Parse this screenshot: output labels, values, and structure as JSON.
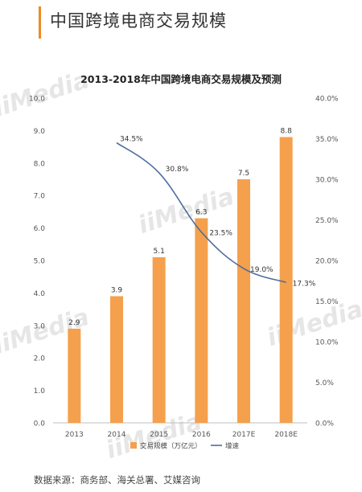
{
  "page_title": "中国跨境电商交易规模",
  "source": "数据来源：商务部、海关总署、艾媒咨询",
  "watermark": "iiMedia",
  "colors": {
    "accent": "#f08a24",
    "bar": "#f5a04c",
    "line": "#4e6d9a"
  },
  "chart_data": {
    "type": "bar+line",
    "title": "2013-2018年中国跨境电商交易规模及预测",
    "categories": [
      "2013",
      "2014",
      "2015",
      "2016",
      "2017E",
      "2018E"
    ],
    "series": [
      {
        "name": "交易规模（万亿元）",
        "type": "bar",
        "axis": "left",
        "values": [
          2.9,
          3.9,
          5.1,
          6.3,
          7.5,
          8.8
        ],
        "labels": [
          "2.9",
          "3.9",
          "5.1",
          "6.3",
          "7.5",
          "8.8"
        ]
      },
      {
        "name": "增速",
        "type": "line",
        "axis": "right",
        "values": [
          null,
          34.5,
          30.8,
          23.5,
          19.0,
          17.3
        ],
        "labels": [
          "",
          "34.5%",
          "30.8%",
          "23.5%",
          "19.0%",
          "17.3%"
        ]
      }
    ],
    "y_left": {
      "min": 0,
      "max": 10,
      "ticks": [
        "0.0",
        "1.0",
        "2.0",
        "3.0",
        "4.0",
        "5.0",
        "6.0",
        "7.0",
        "8.0",
        "9.0",
        "10.0"
      ]
    },
    "y_right": {
      "min": 0,
      "max": 40,
      "ticks": [
        "0.0%",
        "5.0%",
        "10.0%",
        "15.0%",
        "20.0%",
        "25.0%",
        "30.0%",
        "35.0%",
        "40.0%"
      ]
    },
    "grid": false,
    "legend": "bottom"
  }
}
